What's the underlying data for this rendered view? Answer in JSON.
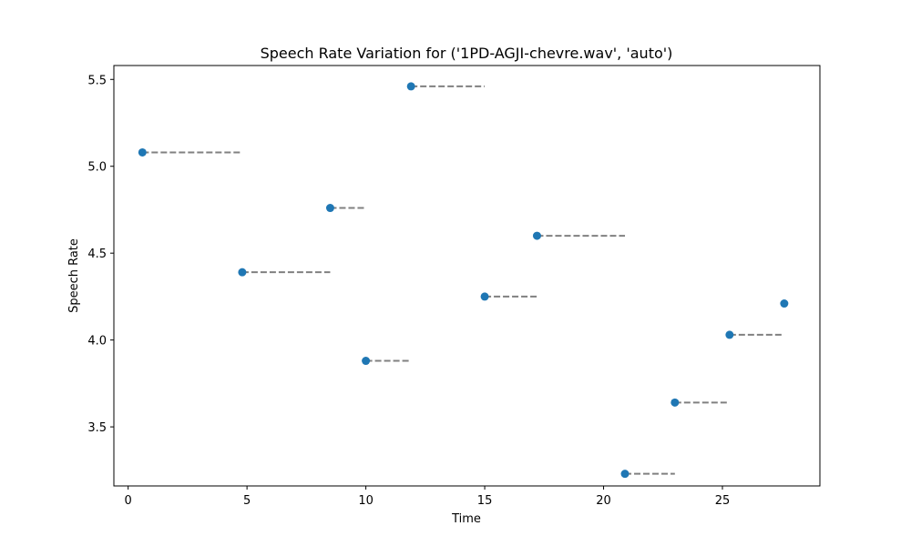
{
  "chart_data": {
    "type": "scatter",
    "title": "Speech Rate Variation for ('1PD-AGJI-chevre.wav', 'auto')",
    "xlabel": "Time",
    "ylabel": "Speech Rate",
    "xlim": [
      -0.6,
      29.1
    ],
    "ylim": [
      3.16,
      5.58
    ],
    "xticks": [
      0,
      5,
      10,
      15,
      20,
      25
    ],
    "yticks": [
      3.5,
      4.0,
      4.5,
      5.0,
      5.5
    ],
    "xtick_labels": [
      "0",
      "5",
      "10",
      "15",
      "20",
      "25"
    ],
    "ytick_labels": [
      "3.5",
      "4.0",
      "4.5",
      "5.0",
      "5.5"
    ],
    "grid": false,
    "marker_color": "#1f77b4",
    "segment_color": "#808080",
    "points": [
      {
        "x": 0.6,
        "y": 5.08,
        "x_end": 4.8
      },
      {
        "x": 4.8,
        "y": 4.39,
        "x_end": 8.5
      },
      {
        "x": 8.5,
        "y": 4.76,
        "x_end": 10.0
      },
      {
        "x": 10.0,
        "y": 3.88,
        "x_end": 11.9
      },
      {
        "x": 11.9,
        "y": 5.46,
        "x_end": 15.0
      },
      {
        "x": 15.0,
        "y": 4.25,
        "x_end": 17.2
      },
      {
        "x": 17.2,
        "y": 4.6,
        "x_end": 20.9
      },
      {
        "x": 20.9,
        "y": 3.23,
        "x_end": 23.0
      },
      {
        "x": 23.0,
        "y": 3.64,
        "x_end": 25.3
      },
      {
        "x": 25.3,
        "y": 4.03,
        "x_end": 27.6
      },
      {
        "x": 27.6,
        "y": 4.21,
        "x_end": null
      }
    ]
  }
}
